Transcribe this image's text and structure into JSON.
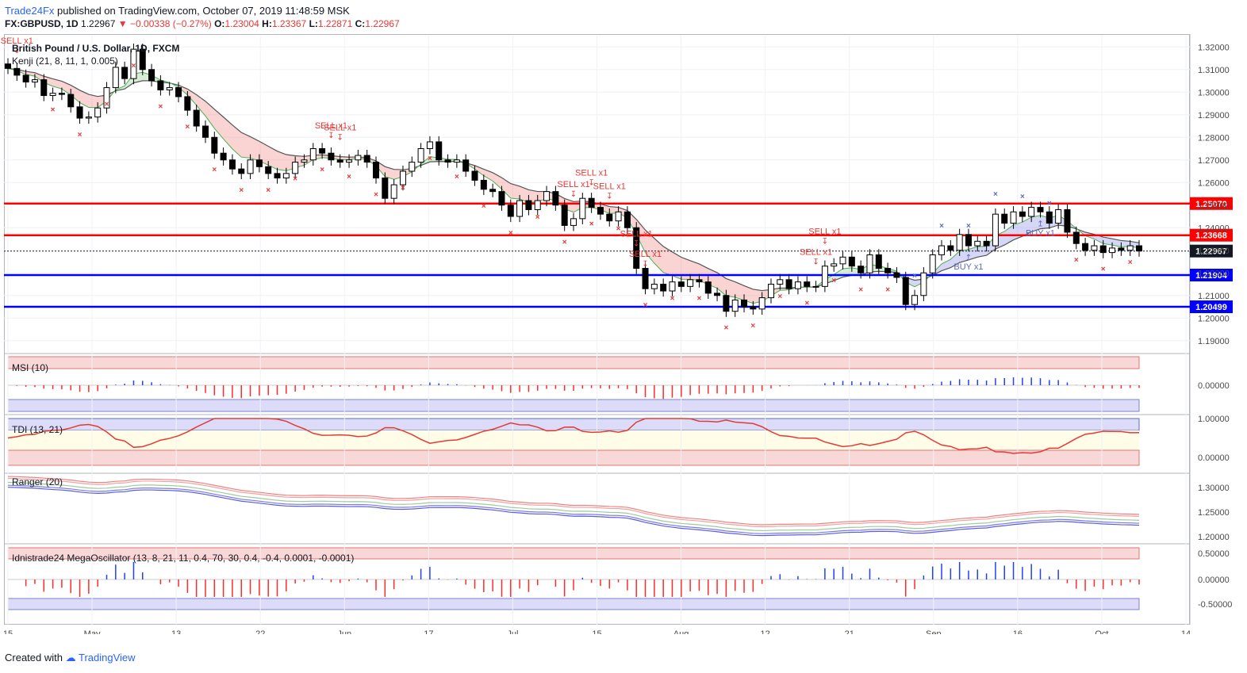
{
  "header": {
    "brand": "Trade24Fx",
    "published": "published on TradingView.com, October 07, 2019 11:48:59 MSK",
    "symbol": "FX:GBPUSD, 1D",
    "last": "1.22967",
    "change": "−0.00338 (−0.27%)",
    "open_label": "O:",
    "open": "1.23004",
    "high_label": "H:",
    "high": "1.23367",
    "low_label": "L:",
    "low": "1.22871",
    "close_label": "C:",
    "close": "1.22967"
  },
  "footer": {
    "created_with": "Created with",
    "tradingview": "TradingView"
  },
  "chart_data": [
    {
      "type": "candlestick",
      "title": "British Pound / U.S. Dollar, 1D, FXCM",
      "indicator": "Kenji (21, 8, 11, 1, 0.005)",
      "ylim": [
        1.185,
        1.325
      ],
      "y_ticks": [
        "1.32000",
        "1.31000",
        "1.30000",
        "1.29000",
        "1.28000",
        "1.27000",
        "1.26000",
        "1.25000",
        "1.24000",
        "1.23000",
        "1.22000",
        "1.21000",
        "1.20000",
        "1.19000"
      ],
      "x_ticks": [
        "15",
        "May",
        "13",
        "22",
        "Jun",
        "17",
        "Jul",
        "15",
        "Aug",
        "12",
        "21",
        "Sep",
        "16",
        "Oct",
        "14"
      ],
      "levels": [
        {
          "value": 1.2507,
          "label": "1.25070",
          "color": "#ff0000"
        },
        {
          "value": 1.23668,
          "label": "1.23668",
          "color": "#ff0000"
        },
        {
          "value": 1.22967,
          "label": "1.22967",
          "color": "#131722"
        },
        {
          "value": 1.21904,
          "label": "1.21904",
          "color": "#0000ff"
        },
        {
          "value": 1.20499,
          "label": "1.20499",
          "color": "#0000ff"
        }
      ],
      "closes": [
        1.3105,
        1.3075,
        1.3045,
        1.3055,
        1.2985,
        1.2995,
        1.299,
        1.2935,
        1.2885,
        1.289,
        1.293,
        1.302,
        1.311,
        1.306,
        1.319,
        1.31,
        1.305,
        1.301,
        1.302,
        1.298,
        1.292,
        1.285,
        1.28,
        1.273,
        1.27,
        1.266,
        1.264,
        1.27,
        1.267,
        1.264,
        1.262,
        1.264,
        1.269,
        1.27,
        1.275,
        1.273,
        1.27,
        1.269,
        1.27,
        1.272,
        1.269,
        1.262,
        1.253,
        1.259,
        1.265,
        1.269,
        1.275,
        1.278,
        1.27,
        1.269,
        1.27,
        1.265,
        1.261,
        1.257,
        1.256,
        1.25,
        1.245,
        1.252,
        1.248,
        1.252,
        1.256,
        1.25,
        1.241,
        1.244,
        1.253,
        1.249,
        1.246,
        1.243,
        1.247,
        1.24,
        1.222,
        1.213,
        1.215,
        1.212,
        1.216,
        1.214,
        1.217,
        1.216,
        1.211,
        1.21,
        1.203,
        1.208,
        1.205,
        1.204,
        1.209,
        1.215,
        1.217,
        1.213,
        1.216,
        1.214,
        1.214,
        1.223,
        1.224,
        1.227,
        1.223,
        1.22,
        1.228,
        1.222,
        1.22,
        1.218,
        1.206,
        1.21,
        1.22,
        1.228,
        1.232,
        1.23,
        1.237,
        1.232,
        1.234,
        1.232,
        1.246,
        1.242,
        1.247,
        1.245,
        1.249,
        1.247,
        1.242,
        1.248,
        1.238,
        1.233,
        1.23,
        1.232,
        1.229,
        1.231,
        1.23,
        1.232,
        1.2297
      ],
      "sell_signals": [
        {
          "label": "SELL x1",
          "date": "2019-04-16"
        },
        {
          "label": "SELL x1",
          "date": "2019-06-05"
        },
        {
          "label": "SELL x1",
          "date": "2019-06-06"
        },
        {
          "label": "SELL x1",
          "date": "2019-07-12"
        },
        {
          "label": "SELL x1",
          "date": "2019-07-15"
        },
        {
          "label": "SELL x1",
          "date": "2019-07-18"
        },
        {
          "label": "SELL x1",
          "date": "2019-07-22"
        },
        {
          "label": "SELL x1",
          "date": "2019-07-24"
        },
        {
          "label": "SELL x1",
          "date": "2019-08-19"
        },
        {
          "label": "SELL x1",
          "date": "2019-08-20"
        }
      ],
      "buy_signals": [
        {
          "label": "BUY x1",
          "date": "2019-09-12"
        },
        {
          "label": "BUY x1",
          "date": "2019-09-23"
        }
      ]
    },
    {
      "type": "bar",
      "title": "MSI (10)",
      "y_ticks": [
        "0.00000"
      ]
    },
    {
      "type": "line",
      "title": "TDI (13, 21)",
      "y_ticks": [
        "1.00000",
        "0.00000"
      ]
    },
    {
      "type": "line",
      "title": "Ranger (20)",
      "y_ticks": [
        "1.30000",
        "1.25000",
        "1.20000"
      ]
    },
    {
      "type": "bar",
      "title": "Idnistrade24 MegaOscillator (13, 8, 21, 11, 0.4, 70, 30, 0.4, -0.4, 0.0001, -0.0001)",
      "y_ticks": [
        "0.50000",
        "0.00000",
        "-0.50000"
      ]
    }
  ]
}
